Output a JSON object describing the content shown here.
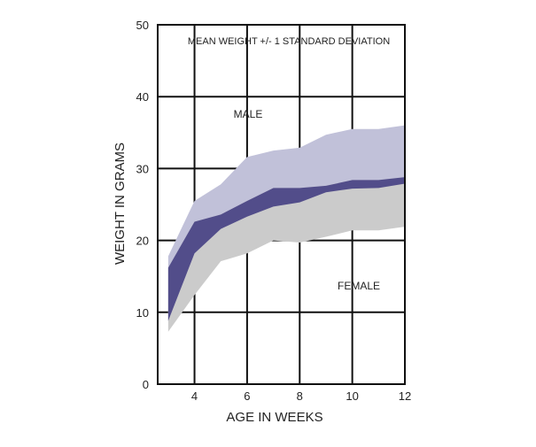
{
  "chart_data": {
    "type": "area",
    "title": "MEAN WEIGHT +/- 1 STANDARD DEVIATION",
    "xlabel": "AGE IN WEEKS",
    "ylabel": "WEIGHT IN GRAMS",
    "xlim": [
      2.6,
      12
    ],
    "ylim": [
      0,
      50
    ],
    "x_ticks": [
      4,
      6,
      8,
      10,
      12
    ],
    "y_ticks": [
      0,
      10,
      20,
      30,
      40,
      50
    ],
    "grid": true,
    "x": [
      3,
      4,
      5,
      6,
      7,
      8,
      9,
      10,
      11,
      12
    ],
    "series": [
      {
        "name": "MALE",
        "upper": [
          17.8,
          25.5,
          27.8,
          31.6,
          32.5,
          32.9,
          34.7,
          35.5,
          35.5,
          36.0
        ],
        "lower": [
          8.8,
          18.2,
          21.6,
          23.3,
          24.7,
          25.3,
          26.7,
          27.2,
          27.3,
          27.9
        ],
        "color": "#c1c1d9"
      },
      {
        "name": "FEMALE",
        "upper": [
          16.2,
          22.6,
          23.6,
          25.5,
          27.3,
          27.3,
          27.6,
          28.4,
          28.4,
          28.8
        ],
        "lower": [
          7.3,
          12.4,
          17.1,
          18.2,
          20.0,
          19.7,
          20.5,
          21.4,
          21.4,
          21.9
        ],
        "color": "#cbcbcb"
      }
    ],
    "overlap_color": "#524d8a"
  }
}
